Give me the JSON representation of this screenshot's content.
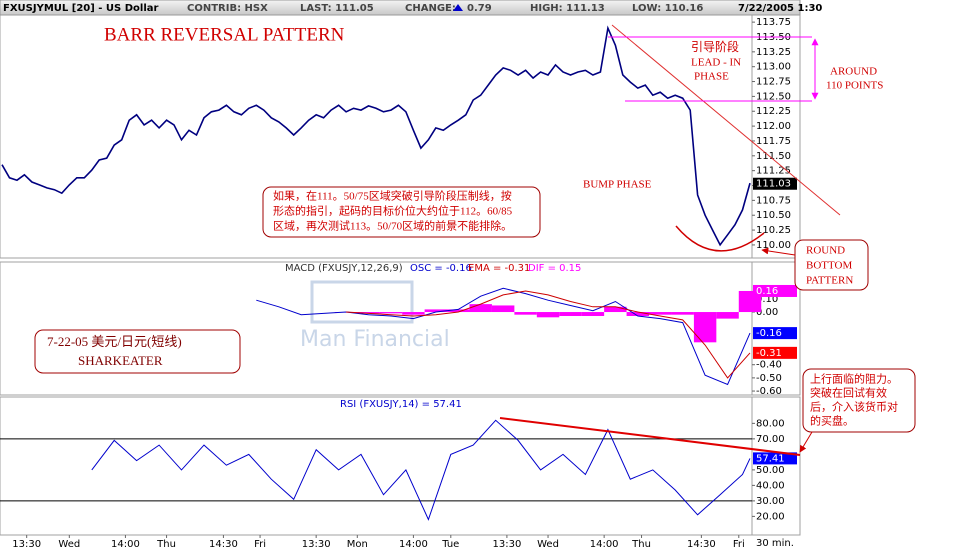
{
  "header": {
    "symbol": "FXUSJYMUL [20] - US Dollar",
    "contrib": "CONTRIB: HSX",
    "last": "LAST: 111.05",
    "change_label": "CHANGE:",
    "change": "0.79",
    "high": "HIGH: 111.13",
    "low": "LOW: 110.16",
    "date": "7/22/2005 1:30"
  },
  "annotations": {
    "title": "BARR REVERSAL PATTERN",
    "lead_in": [
      "引导阶段",
      "LEAD - IN",
      "PHASE"
    ],
    "around": [
      "AROUND",
      "110 POINTS"
    ],
    "bump": "BUMP PHASE",
    "note": [
      "如果，在111。50/75区域突破引导阶段压制线，按",
      "形态的指引，起码的目标价位大约位于112。60/85",
      "区域，再次测试113。50/70区域的前景不能排除。"
    ],
    "round_bottom": [
      "ROUND",
      "BOTTOM",
      "PATTERN"
    ],
    "signature": [
      "7-22-05   美元/日元(短线)",
      "SHARKEATER"
    ],
    "resistance": [
      "上行面临的阻力。",
      "突破在回试有效",
      "后，介入该货币对",
      "的买盘。"
    ],
    "watermark": "Man Financial",
    "x_unit": "30 min."
  },
  "chart_data": [
    {
      "type": "line",
      "color": "#000080",
      "xlim": [
        0,
        100
      ],
      "ylim": [
        109.78,
        113.87
      ],
      "yticks": [
        {
          "value": 110,
          "label": "110.00"
        },
        {
          "value": 110.25,
          "label": "110.25"
        },
        {
          "value": 110.5,
          "label": "110.50"
        },
        {
          "value": 110.75,
          "label": "110.75"
        },
        {
          "value": 111,
          "label": "111.00"
        },
        {
          "value": 111.25,
          "label": "111.25"
        },
        {
          "value": 111.5,
          "label": "111.50"
        },
        {
          "value": 111.75,
          "label": "111.75"
        },
        {
          "value": 112,
          "label": "112.00"
        },
        {
          "value": 112.25,
          "label": "112.25"
        },
        {
          "value": 112.5,
          "label": "112.50"
        },
        {
          "value": 112.75,
          "label": "112.75"
        },
        {
          "value": 113,
          "label": "113.00"
        },
        {
          "value": 113.25,
          "label": "113.25"
        },
        {
          "value": 113.5,
          "label": "113.50"
        },
        {
          "value": 113.75,
          "label": "113.75"
        }
      ],
      "values": [
        111.35,
        111.13,
        111.09,
        111.18,
        111.06,
        111.01,
        110.96,
        110.93,
        110.87,
        111.01,
        111.13,
        111.13,
        111.26,
        111.43,
        111.46,
        111.68,
        111.77,
        112.1,
        112.19,
        112.02,
        112.1,
        111.97,
        112.1,
        112.02,
        111.77,
        111.93,
        111.85,
        112.14,
        112.24,
        112.27,
        112.35,
        112.24,
        112.19,
        112.3,
        112.35,
        112.27,
        112.14,
        112.07,
        111.97,
        111.85,
        111.97,
        112.1,
        112.19,
        112.14,
        112.27,
        112.35,
        112.24,
        112.3,
        112.27,
        112.34,
        112.3,
        112.24,
        112.27,
        112.35,
        112.24,
        111.93,
        111.63,
        111.77,
        111.97,
        111.93,
        112.02,
        112.1,
        112.19,
        112.44,
        112.52,
        112.69,
        112.86,
        112.98,
        112.94,
        112.86,
        112.94,
        112.81,
        112.91,
        112.86,
        113.03,
        112.91,
        112.86,
        112.91,
        112.94,
        112.86,
        112.91,
        113.65,
        113.36,
        112.86,
        112.74,
        112.64,
        112.69,
        112.52,
        112.57,
        112.47,
        112.52,
        112.47,
        112.27,
        110.84,
        110.5,
        110.25,
        110.0,
        110.17,
        110.34,
        110.59,
        111.04
      ],
      "markers": [
        {
          "value": 111.03,
          "color": "#000000"
        }
      ]
    },
    {
      "type": "combo",
      "title": "MACD (FXUSJY,12,26,9)",
      "osc": "OSC = -0.16",
      "ema": "EMA = -0.31",
      "dif": "DIF = 0.15",
      "xlim": [
        0,
        100
      ],
      "ylim": [
        -0.63,
        0.38
      ],
      "yticks": [
        {
          "value": 0.1,
          "label": "0.10"
        },
        {
          "value": 0,
          "label": "0.00"
        },
        {
          "value": -0.4,
          "label": "-0.40"
        },
        {
          "value": -0.5,
          "label": "-0.50"
        },
        {
          "value": -0.6,
          "label": "-0.60"
        }
      ],
      "x": [
        34,
        37,
        40,
        43,
        46,
        49,
        52,
        55,
        58,
        61,
        64,
        67,
        70,
        73,
        76,
        79,
        82,
        85,
        88,
        91,
        94,
        97,
        100
      ],
      "series": [
        {
          "color": "#0000cc",
          "values": [
            0.09,
            0.04,
            -0.02,
            -0.01,
            0.0,
            -0.02,
            -0.03,
            -0.05,
            0.0,
            0.02,
            0.12,
            0.18,
            0.14,
            0.09,
            0.05,
            0.01,
            0.08,
            -0.03,
            -0.05,
            -0.08,
            -0.48,
            -0.55,
            -0.16
          ]
        },
        {
          "color": "#cc0000",
          "values": [
            null,
            null,
            null,
            null,
            0.0,
            -0.01,
            -0.02,
            -0.03,
            -0.02,
            0.0,
            0.06,
            0.13,
            0.16,
            0.13,
            0.08,
            0.04,
            0.04,
            0.0,
            -0.03,
            -0.06,
            -0.25,
            -0.5,
            -0.31
          ]
        }
      ],
      "histogram": {
        "color": "#ff00ff",
        "values": [
          null,
          null,
          null,
          null,
          0.0,
          -0.01,
          -0.01,
          -0.02,
          0.02,
          0.02,
          0.06,
          0.05,
          -0.02,
          -0.04,
          -0.03,
          -0.03,
          0.04,
          -0.03,
          -0.02,
          -0.02,
          -0.23,
          -0.05,
          0.16
        ]
      },
      "markers": [
        {
          "value": 0.16,
          "color": "#ff00ff"
        },
        {
          "value": -0.16,
          "color": "#0000ff"
        },
        {
          "value": -0.31,
          "color": "#ff0000"
        }
      ]
    },
    {
      "type": "line",
      "title": "RSI (FXUSJY,14) = 57.41",
      "color": "#0000cc",
      "xlim": [
        0,
        100
      ],
      "ylim": [
        8,
        97
      ],
      "yticks": [
        {
          "value": 20,
          "label": "20.00"
        },
        {
          "value": 30,
          "label": "30.00"
        },
        {
          "value": 40,
          "label": "40.00"
        },
        {
          "value": 50,
          "label": "50.00"
        },
        {
          "value": 70,
          "label": "70.00"
        },
        {
          "value": 80,
          "label": "80.00"
        }
      ],
      "reference_lines": [
        70,
        30
      ],
      "x": [
        12,
        15,
        18,
        21,
        24,
        27,
        30,
        33,
        36,
        39,
        42,
        45,
        48,
        51,
        54,
        57,
        60,
        63,
        66,
        69,
        72,
        75,
        78,
        81,
        84,
        87,
        90,
        93,
        96,
        99,
        100
      ],
      "values": [
        50,
        69,
        56,
        66,
        50,
        66,
        53,
        60,
        44,
        31,
        63,
        50,
        60,
        34,
        50,
        18,
        60,
        66,
        82,
        69,
        50,
        60,
        47,
        76,
        44,
        50,
        37,
        21,
        34,
        47,
        57.41
      ],
      "markers": [
        {
          "value": 57.41,
          "color": "#0000ff"
        }
      ],
      "xticks": [
        {
          "value": 3.3,
          "label": "13:30"
        },
        {
          "value": 9,
          "label": "Wed"
        },
        {
          "value": 16.5,
          "label": "14:00"
        },
        {
          "value": 22,
          "label": "Thu"
        },
        {
          "value": 29.6,
          "label": "14:30"
        },
        {
          "value": 34.5,
          "label": "Fri"
        },
        {
          "value": 42,
          "label": "13:30"
        },
        {
          "value": 47.5,
          "label": "Mon"
        },
        {
          "value": 55,
          "label": "14:00"
        },
        {
          "value": 60,
          "label": "Tue"
        },
        {
          "value": 67.5,
          "label": "13:30"
        },
        {
          "value": 73,
          "label": "Wed"
        },
        {
          "value": 80.5,
          "label": "14:00"
        },
        {
          "value": 85.5,
          "label": "Thu"
        },
        {
          "value": 93.5,
          "label": "14:30"
        },
        {
          "value": 98.5,
          "label": "Fri"
        }
      ]
    }
  ]
}
